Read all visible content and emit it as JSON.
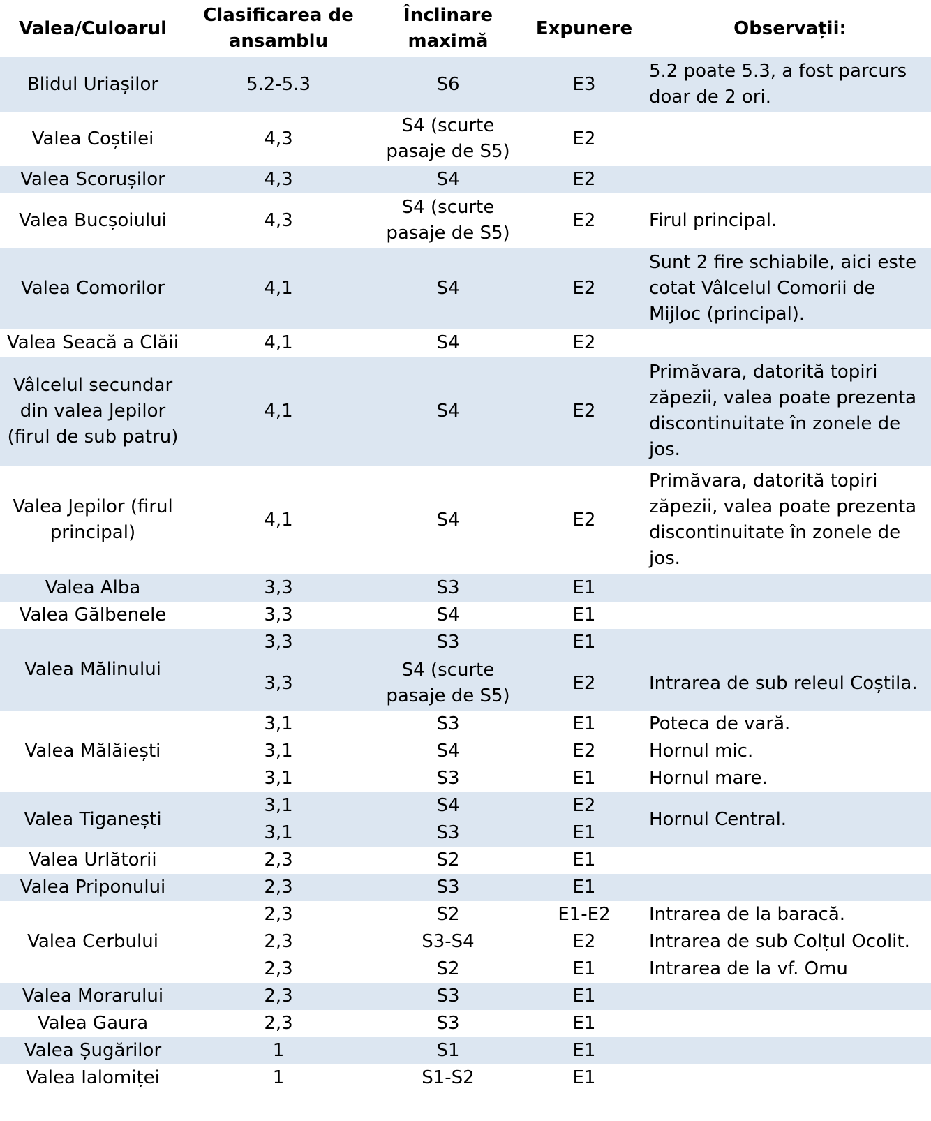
{
  "headers": {
    "name": "Valea/Culoarul",
    "class": "Clasificarea de ansamblu",
    "incl": "Înclinare maximă",
    "exp": "Expunere",
    "obs": "Observații:"
  },
  "groups": [
    {
      "name": "Blidul Uriașilor",
      "shade": true,
      "rows": [
        {
          "class": "5.2-5.3",
          "incl": "S6",
          "exp": "E3",
          "obs": "5.2 poate 5.3, a fost parcurs doar de 2 ori."
        }
      ]
    },
    {
      "name": "Valea Coștilei",
      "shade": false,
      "rows": [
        {
          "class": "4,3",
          "incl": "S4 (scurte pasaje de S5)",
          "exp": "E2",
          "obs": ""
        }
      ]
    },
    {
      "name": "Valea Scorușilor",
      "shade": true,
      "rows": [
        {
          "class": "4,3",
          "incl": "S4",
          "exp": "E2",
          "obs": ""
        }
      ]
    },
    {
      "name": "Valea Bucșoiului",
      "shade": false,
      "rows": [
        {
          "class": "4,3",
          "incl": "S4 (scurte pasaje de S5)",
          "exp": "E2",
          "obs": "Firul principal."
        }
      ]
    },
    {
      "name": "Valea Comorilor",
      "shade": true,
      "rows": [
        {
          "class": "4,1",
          "incl": "S4",
          "exp": "E2",
          "obs": "Sunt 2 fire schiabile, aici este cotat Vâlcelul Comorii de Mijloc (principal)."
        }
      ]
    },
    {
      "name": "Valea Seacă a Clăii",
      "shade": false,
      "rows": [
        {
          "class": "4,1",
          "incl": "S4",
          "exp": "E2",
          "obs": ""
        }
      ]
    },
    {
      "name": "Vâlcelul secundar din valea Jepilor (firul de sub patru)",
      "shade": true,
      "rows": [
        {
          "class": "4,1",
          "incl": "S4",
          "exp": "E2",
          "obs": "Primăvara, datorită topiri zăpezii, valea poate prezenta discontinuitate în zonele de jos."
        }
      ]
    },
    {
      "name": "Valea Jepilor (firul principal)",
      "shade": false,
      "rows": [
        {
          "class": "4,1",
          "incl": "S4",
          "exp": "E2",
          "obs": "Primăvara, datorită topiri zăpezii, valea poate prezenta discontinuitate în zonele de jos."
        }
      ]
    },
    {
      "name": "Valea Alba",
      "shade": true,
      "rows": [
        {
          "class": "3,3",
          "incl": "S3",
          "exp": "E1",
          "obs": ""
        }
      ]
    },
    {
      "name": "Valea Gălbenele",
      "shade": false,
      "rows": [
        {
          "class": "3,3",
          "incl": "S4",
          "exp": "E1",
          "obs": ""
        }
      ]
    },
    {
      "name": "Valea Mălinului",
      "shade": true,
      "rows": [
        {
          "class": "3,3",
          "incl": "S3",
          "exp": "E1",
          "obs": ""
        },
        {
          "class": "3,3",
          "incl": "S4 (scurte pasaje de S5)",
          "exp": "E2",
          "obs": "Intrarea de sub releul Coștila."
        }
      ]
    },
    {
      "name": "Valea Mălăiești",
      "shade": false,
      "rows": [
        {
          "class": "3,1",
          "incl": "S3",
          "exp": "E1",
          "obs": "Poteca de vară."
        },
        {
          "class": "3,1",
          "incl": "S4",
          "exp": "E2",
          "obs": "Hornul mic."
        },
        {
          "class": "3,1",
          "incl": "S3",
          "exp": "E1",
          "obs": "Hornul mare."
        }
      ]
    },
    {
      "name": "Valea Tiganești",
      "shade": true,
      "rows": [
        {
          "class": "3,1",
          "incl": "S4",
          "exp": "E2",
          "obs": ""
        },
        {
          "class": "3,1",
          "incl": "S3",
          "exp": "E1",
          "obs": ""
        }
      ],
      "group_obs": "Hornul Central."
    },
    {
      "name": "Valea Urlătorii",
      "shade": false,
      "rows": [
        {
          "class": "2,3",
          "incl": "S2",
          "exp": "E1",
          "obs": ""
        }
      ]
    },
    {
      "name": "Valea Priponului",
      "shade": true,
      "rows": [
        {
          "class": "2,3",
          "incl": "S3",
          "exp": "E1",
          "obs": ""
        }
      ]
    },
    {
      "name": "Valea Cerbului",
      "shade": false,
      "rows": [
        {
          "class": "2,3",
          "incl": "S2",
          "exp": "E1-E2",
          "obs": "Intrarea de la baracă."
        },
        {
          "class": "2,3",
          "incl": "S3-S4",
          "exp": "E2",
          "obs": "Intrarea de sub Colțul Ocolit."
        },
        {
          "class": "2,3",
          "incl": "S2",
          "exp": "E1",
          "obs": "Intrarea de la vf. Omu"
        }
      ]
    },
    {
      "name": "Valea Morarului",
      "shade": true,
      "rows": [
        {
          "class": "2,3",
          "incl": "S3",
          "exp": "E1",
          "obs": ""
        }
      ]
    },
    {
      "name": "Valea Gaura",
      "shade": false,
      "rows": [
        {
          "class": "2,3",
          "incl": "S3",
          "exp": "E1",
          "obs": ""
        }
      ]
    },
    {
      "name": "Valea Șugărilor",
      "shade": true,
      "rows": [
        {
          "class": "1",
          "incl": "S1",
          "exp": "E1",
          "obs": ""
        }
      ]
    },
    {
      "name": "Valea Ialomiței",
      "shade": false,
      "rows": [
        {
          "class": "1",
          "incl": "S1-S2",
          "exp": "E1",
          "obs": ""
        }
      ]
    }
  ]
}
